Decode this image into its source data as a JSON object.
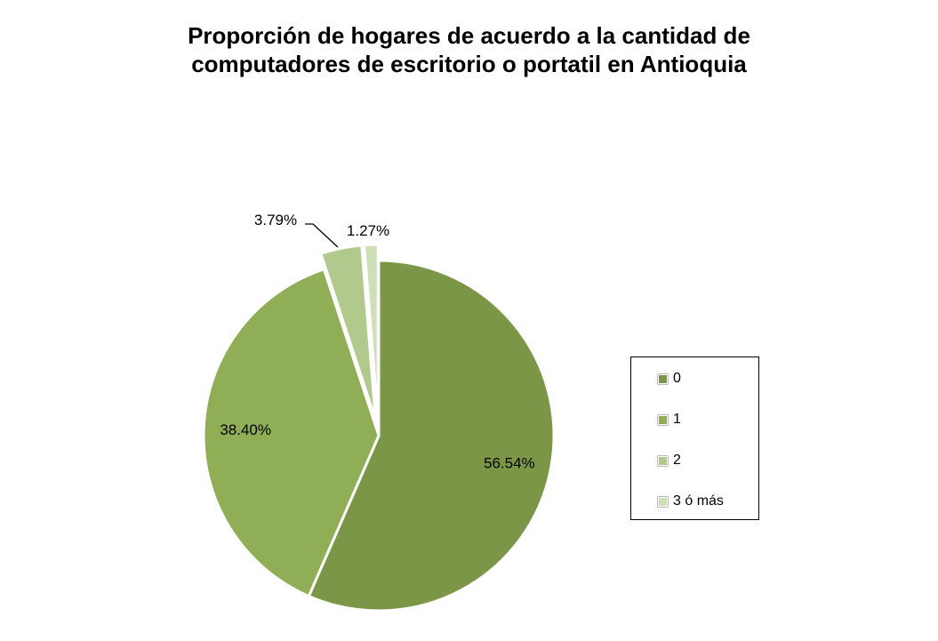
{
  "chart_data": {
    "type": "pie",
    "title_lines": [
      "Proporción de hogares de acuerdo a la cantidad de",
      "computadores de escritorio o portatil en Antioquia"
    ],
    "categories": [
      "0",
      "1",
      "2",
      "3 ó más"
    ],
    "values": [
      56.54,
      38.4,
      3.79,
      1.27
    ],
    "labels": [
      "56.54%",
      "38.40%",
      "3.79%",
      "1.27%"
    ],
    "colors": [
      "#7b9646",
      "#8fae55",
      "#b1c98c",
      "#cfdfb8"
    ],
    "legend_position": "right"
  }
}
